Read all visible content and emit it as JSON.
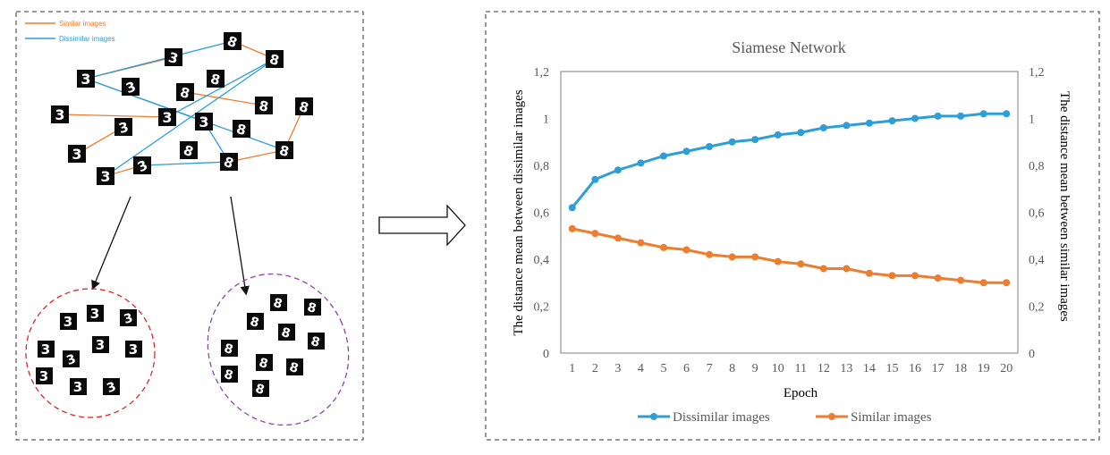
{
  "left_panel": {
    "legend": {
      "similar_label": "Similar images",
      "dissimilar_label": "Dissimilar images",
      "similar_color": "#ed7d31",
      "dissimilar_color": "#2e9fd6"
    },
    "cluster_colors": {
      "threes": "#e0262a",
      "eights": "#8e44ad"
    }
  },
  "chart_data": {
    "type": "line",
    "title": "Siamese Network",
    "xlabel": "Epoch",
    "ylabel_left": "The distance mean between dissimilar images",
    "ylabel_right": "The distance mean between similar images",
    "ylim": [
      0,
      1.2
    ],
    "y_ticks": [
      "0",
      "0,2",
      "0,4",
      "0,6",
      "0,8",
      "1",
      "1,2"
    ],
    "x": [
      "1",
      "2",
      "3",
      "4",
      "5",
      "6",
      "7",
      "8",
      "9",
      "10",
      "11",
      "12",
      "13",
      "14",
      "15",
      "16",
      "17",
      "18",
      "19",
      "20"
    ],
    "series": [
      {
        "name": "Dissimilar images",
        "color": "#2e9fd6",
        "values": [
          0.62,
          0.74,
          0.78,
          0.81,
          0.84,
          0.86,
          0.88,
          0.9,
          0.91,
          0.93,
          0.94,
          0.96,
          0.97,
          0.98,
          0.99,
          1.0,
          1.01,
          1.01,
          1.02,
          1.02
        ]
      },
      {
        "name": "Similar images",
        "color": "#ed7d31",
        "values": [
          0.53,
          0.51,
          0.49,
          0.47,
          0.45,
          0.44,
          0.42,
          0.41,
          0.41,
          0.39,
          0.38,
          0.36,
          0.36,
          0.34,
          0.33,
          0.33,
          0.32,
          0.31,
          0.3,
          0.3
        ]
      }
    ],
    "legend_position": "bottom",
    "grid": false
  }
}
